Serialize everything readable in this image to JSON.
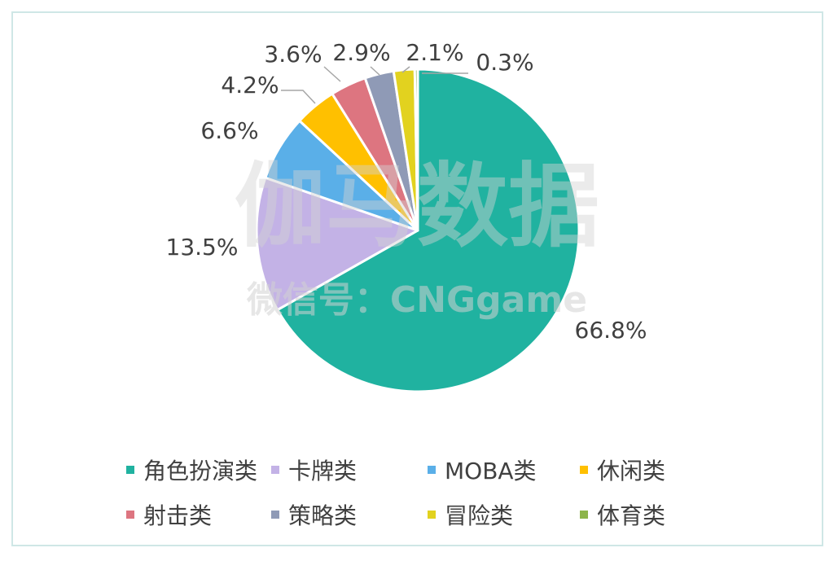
{
  "chart_data": {
    "type": "pie",
    "categories": [
      "角色扮演类",
      "卡牌类",
      "MOBA类",
      "休闲类",
      "射击类",
      "策略类",
      "冒险类",
      "体育类"
    ],
    "values": [
      66.8,
      13.5,
      6.6,
      4.2,
      3.6,
      2.9,
      2.1,
      0.3
    ],
    "data_labels": [
      "66.8%",
      "13.5%",
      "6.6%",
      "4.2%",
      "3.6%",
      "2.9%",
      "2.1%",
      "0.3%"
    ],
    "colors": [
      "#20b2a0",
      "#c3b2e6",
      "#5aafe8",
      "#ffc000",
      "#dd7580",
      "#8f9ab6",
      "#e2d21f",
      "#8db44b"
    ],
    "legend_position": "bottom",
    "start_angle": "top",
    "direction": "clockwise"
  },
  "watermark": {
    "main": "伽马数据",
    "sub": "微信号：CNGgame"
  }
}
